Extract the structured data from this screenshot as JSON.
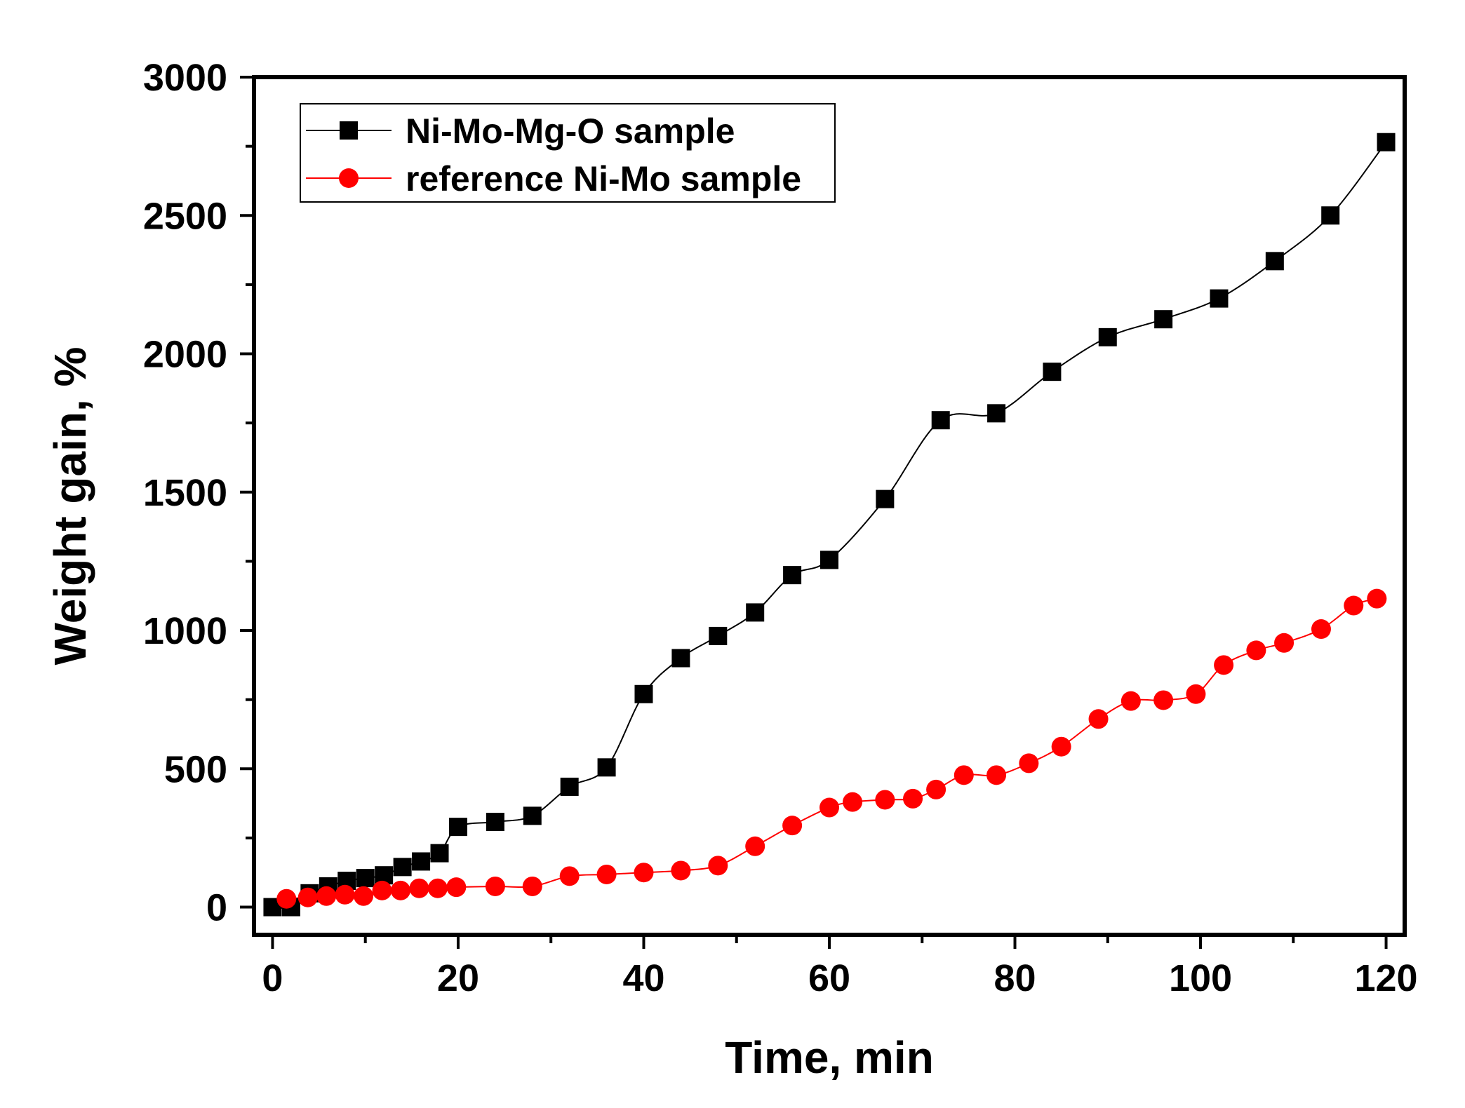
{
  "chart_data": {
    "type": "line",
    "title": "",
    "xlabel": "Time, min",
    "ylabel": "Weight gain, %",
    "xlim": [
      -2,
      122
    ],
    "ylim": [
      -100,
      3000
    ],
    "xticks": [
      0,
      20,
      40,
      60,
      80,
      100,
      120
    ],
    "yticks": [
      0,
      500,
      1000,
      1500,
      2000,
      2500,
      3000
    ],
    "xtick_labels": [
      "0",
      "20",
      "40",
      "60",
      "80",
      "100",
      "120"
    ],
    "ytick_labels": [
      "0",
      "500",
      "1000",
      "1500",
      "2000",
      "2500",
      "3000"
    ],
    "grid": false,
    "legend_position": "top-left",
    "series": [
      {
        "name": "Ni-Mo-Mg-O sample",
        "color": "#000000",
        "marker": "square",
        "x": [
          0,
          2,
          4,
          6,
          8,
          10,
          12,
          14,
          16,
          18,
          20,
          24,
          28,
          32,
          36,
          40,
          44,
          48,
          52,
          56,
          60,
          66,
          72,
          78,
          84,
          90,
          96,
          102,
          108,
          114,
          120
        ],
        "y": [
          0,
          0,
          50,
          75,
          95,
          105,
          115,
          145,
          165,
          195,
          290,
          308,
          330,
          435,
          505,
          770,
          900,
          980,
          1065,
          1200,
          1255,
          1475,
          1760,
          1785,
          1935,
          2060,
          2125,
          2200,
          2335,
          2500,
          2765
        ]
      },
      {
        "name": "reference Ni-Mo sample",
        "color": "#ff0000",
        "marker": "circle",
        "x": [
          1.5,
          3.8,
          5.8,
          7.8,
          9.8,
          11.8,
          13.8,
          15.8,
          17.8,
          19.8,
          24,
          28,
          32,
          36,
          40,
          44,
          48,
          52,
          56,
          60,
          62.5,
          66,
          69,
          71.5,
          74.5,
          78,
          81.5,
          85,
          89,
          92.5,
          96,
          99.5,
          102.5,
          106,
          109,
          113,
          116.5,
          119
        ],
        "y": [
          30,
          35,
          40,
          45,
          40,
          60,
          60,
          68,
          68,
          72,
          75,
          75,
          112,
          118,
          125,
          132,
          150,
          220,
          295,
          360,
          380,
          388,
          392,
          425,
          477,
          477,
          520,
          580,
          680,
          745,
          748,
          770,
          875,
          928,
          955,
          1005,
          1090,
          1115
        ]
      }
    ]
  }
}
